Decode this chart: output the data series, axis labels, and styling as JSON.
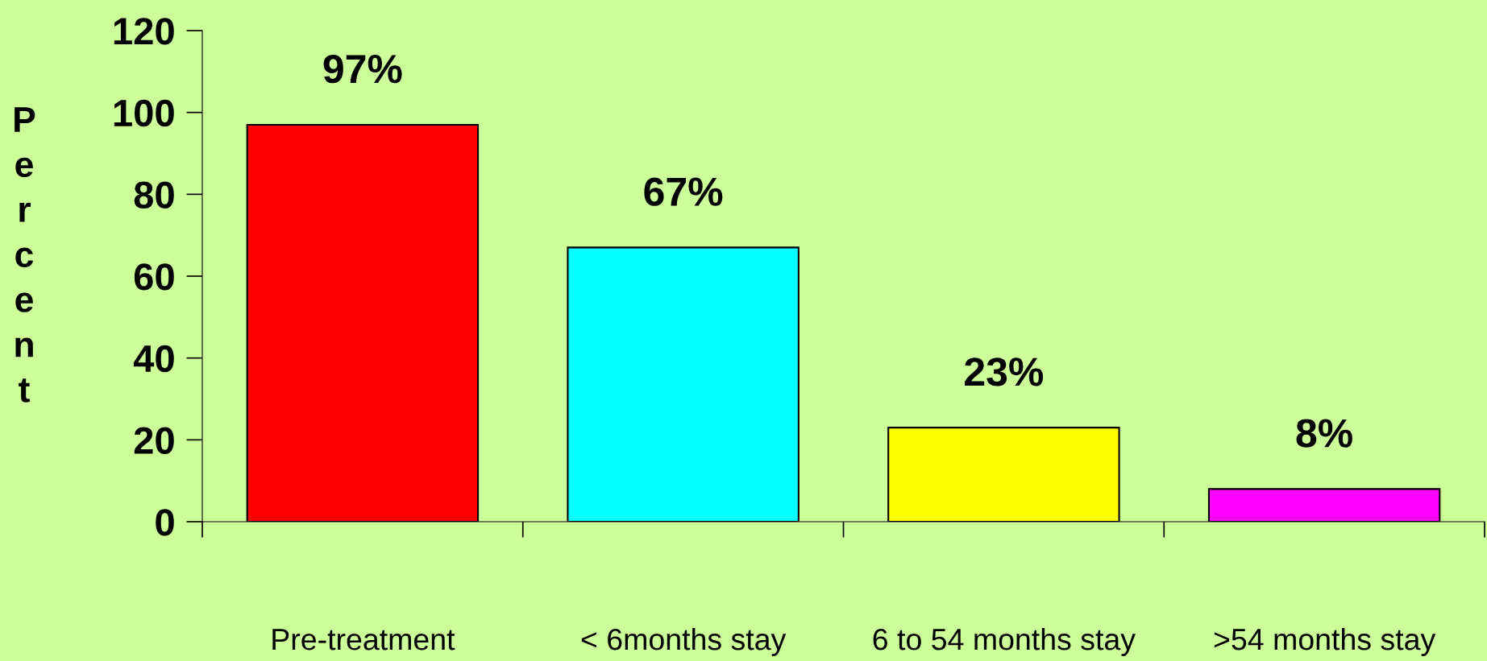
{
  "chart_data": {
    "type": "bar",
    "ylabel": "Percent",
    "categories": [
      "Pre-treatment",
      "< 6months stay",
      "6 to 54 months stay",
      ">54 months stay"
    ],
    "values": [
      97,
      67,
      23,
      8
    ],
    "colors": [
      "#ff0000",
      "#00ffff",
      "#ffff00",
      "#ff00ff"
    ],
    "value_labels": [
      "97%",
      "67%",
      "23%",
      "8%"
    ],
    "ylim": [
      0,
      120
    ],
    "yticks": [
      0,
      20,
      40,
      60,
      80,
      100,
      120
    ],
    "grid": false,
    "legend": false
  }
}
